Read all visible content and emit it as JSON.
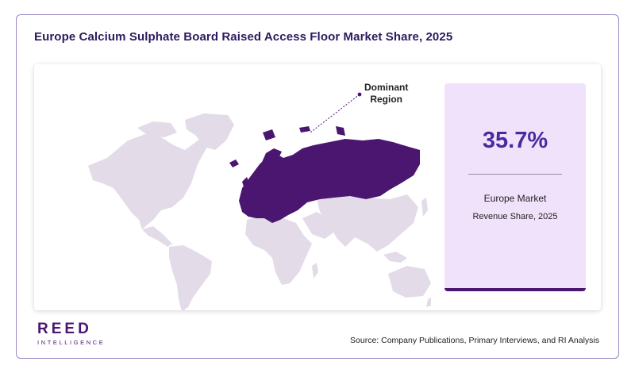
{
  "title": "Europe Calcium Sulphate Board Raised Access Floor Market Share, 2025",
  "map": {
    "highlighted_region": "Europe",
    "callout_label_line1": "Dominant",
    "callout_label_line2": "Region",
    "colors": {
      "highlight": "#4a1670",
      "land": "#e3dce8",
      "callout_line": "#4a1670"
    }
  },
  "stat": {
    "value": "35.7%",
    "label": "Europe Market",
    "sublabel": "Revenue Share, 2025",
    "colors": {
      "card_bg": "#f1e2fb",
      "value": "#4b2a9e",
      "accent_bar": "#4a1670"
    }
  },
  "brand": {
    "name": "REED",
    "tagline": "INTELLIGENCE"
  },
  "source": "Source: Company Publications, Primary Interviews, and RI Analysis"
}
